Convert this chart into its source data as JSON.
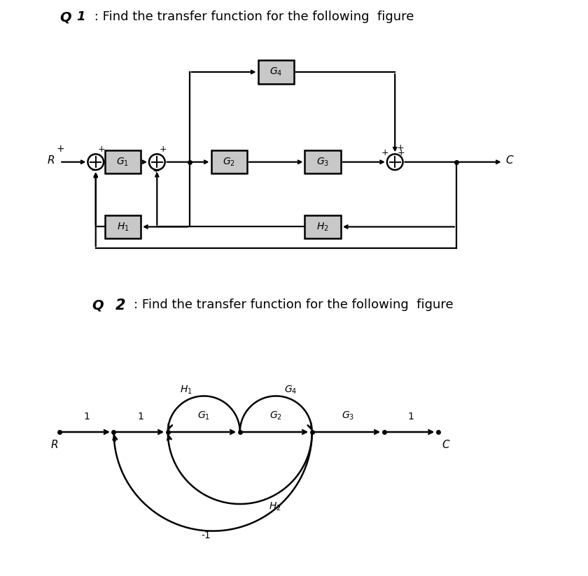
{
  "bg_color": "#ffffff",
  "title_q1_bold": "Q1",
  "title_q1_rest": " : Find the transfer function for the following  figure",
  "title_q2_bold": "Q 2",
  "title_q2_rest": ": Find the transfer function for the following  figure",
  "title_fontsize": 13,
  "box_color": "#c8c8c8",
  "box_edge": "#000000",
  "text_color": "#000000"
}
